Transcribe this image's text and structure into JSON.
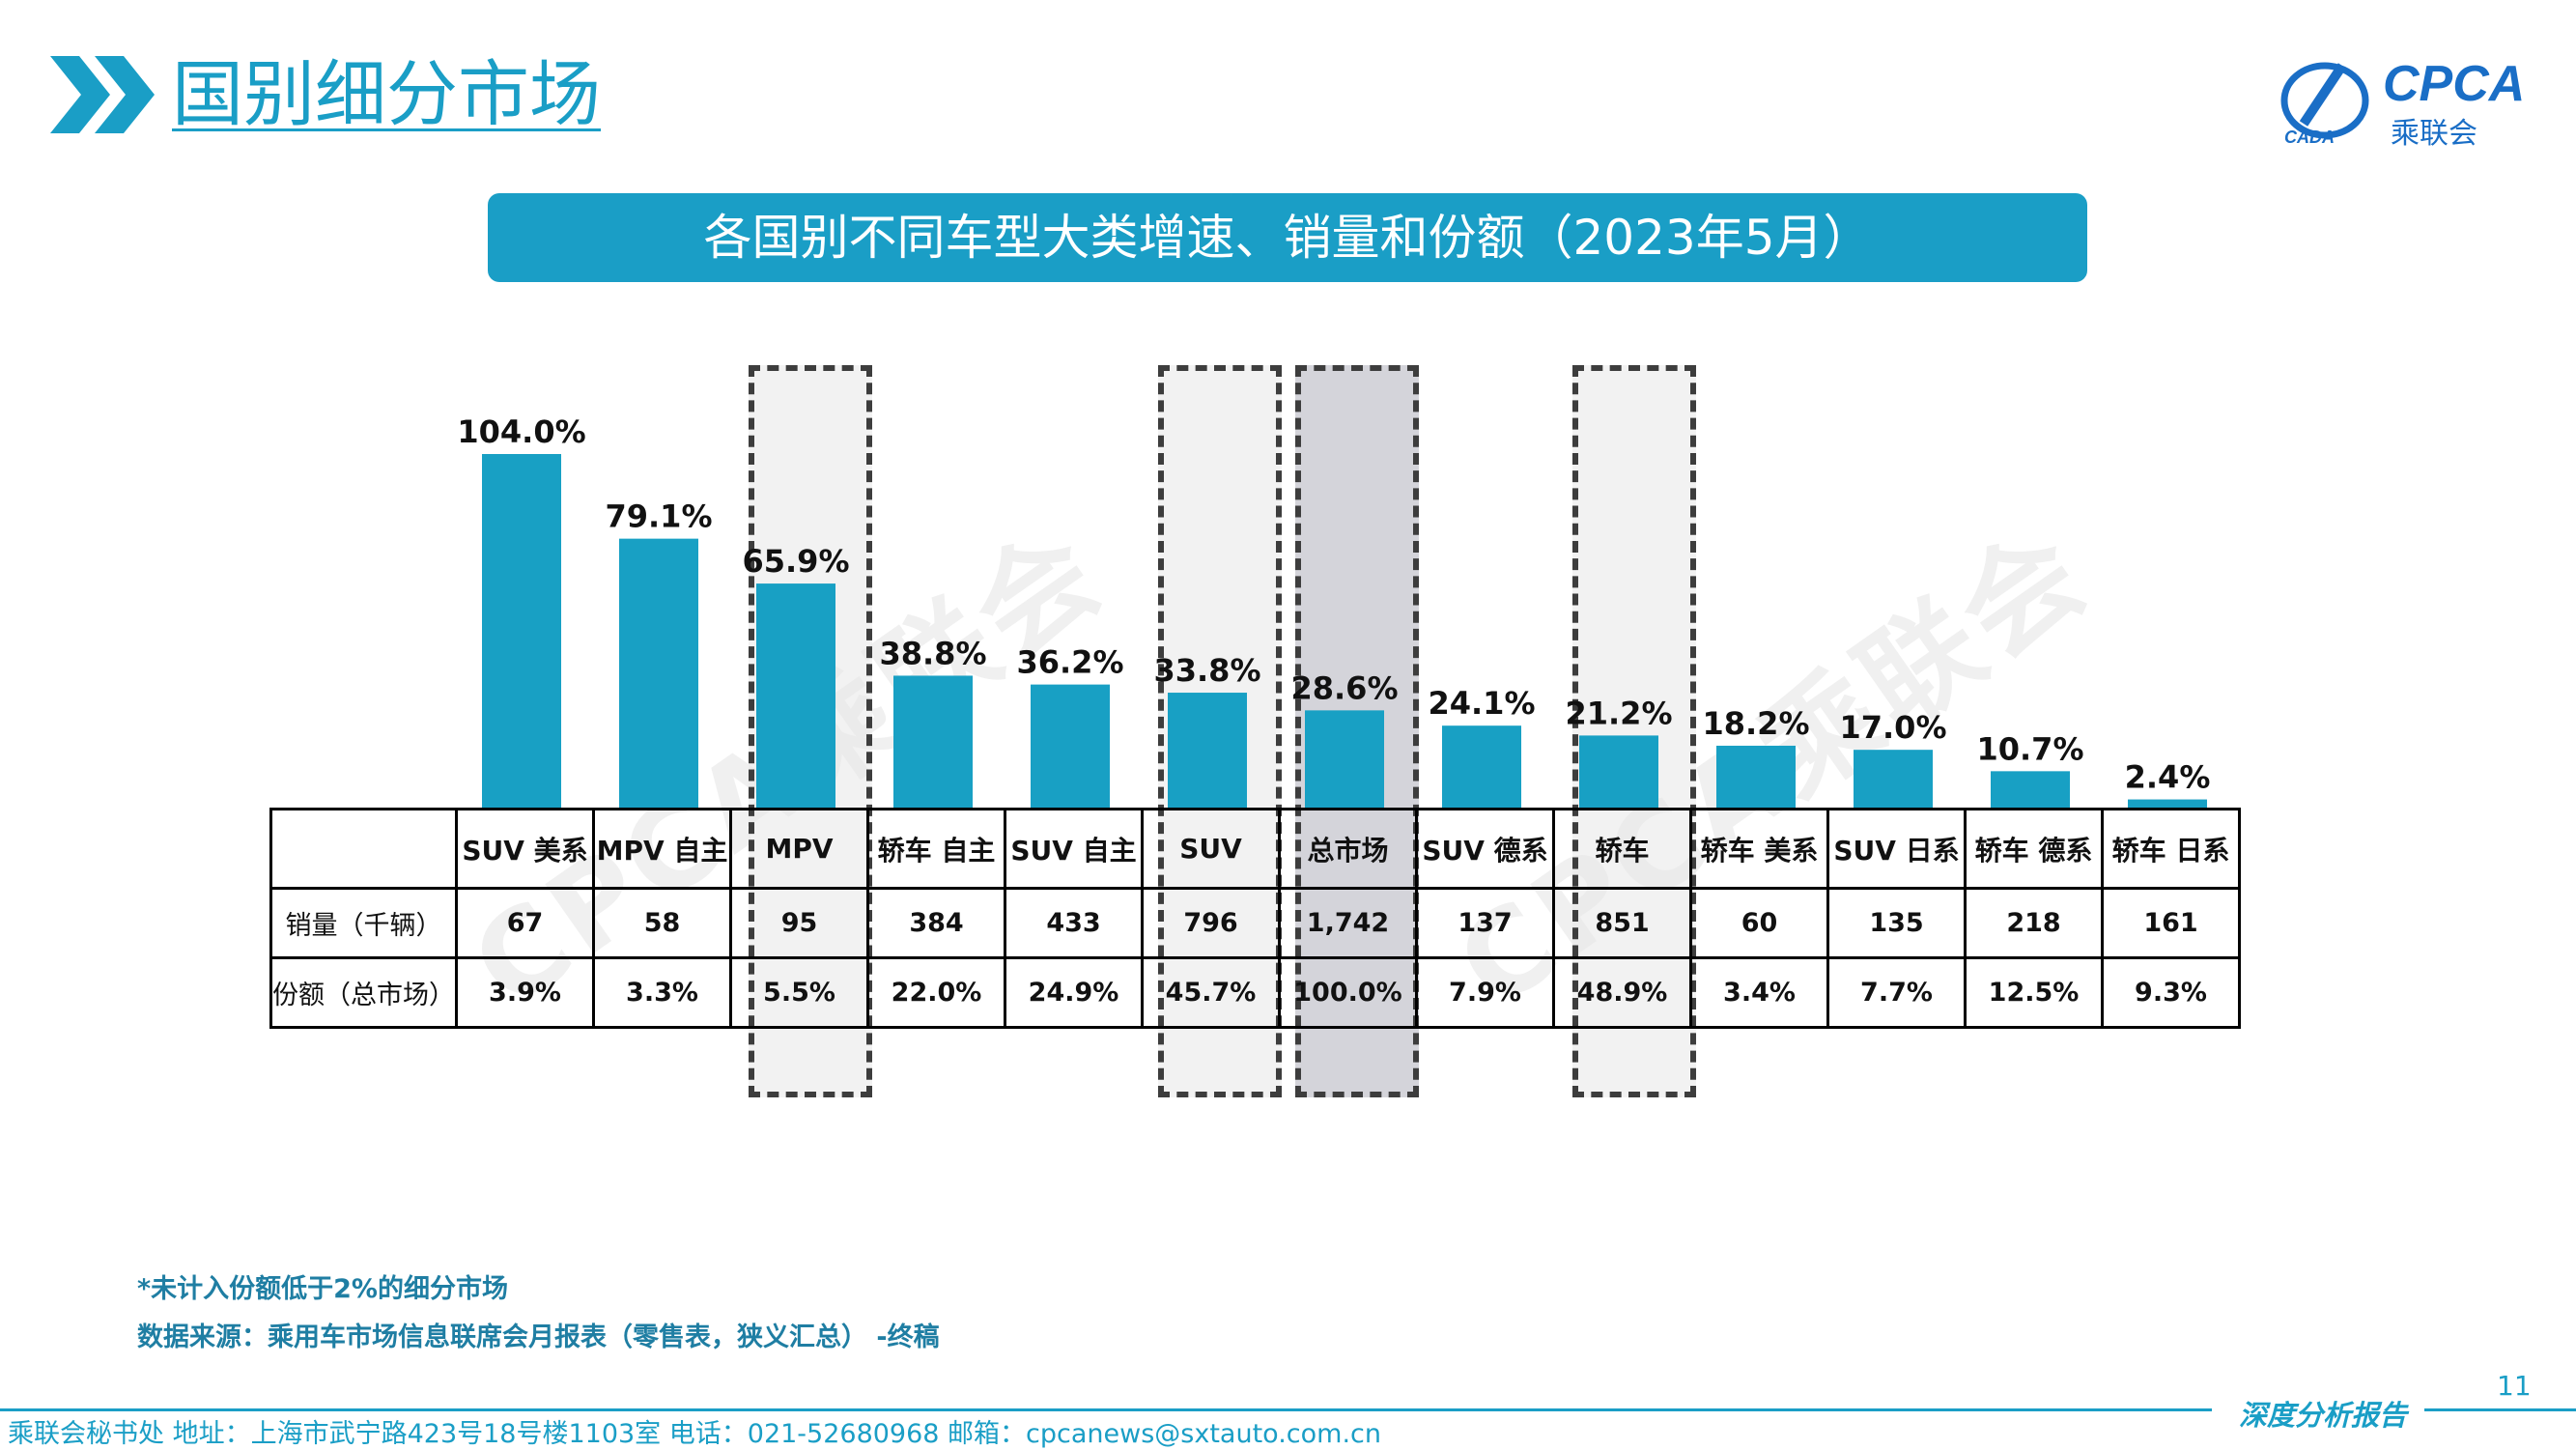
{
  "page": {
    "title": "国别细分市场",
    "banner": "各国别不同车型大类增速、销量和份额（2023年5月）",
    "logo_text": "CPCA",
    "logo_subtext": "乘联会",
    "logo_small": "CADA",
    "watermark": "CPCA乘联会",
    "page_number": "11",
    "footer_left": "乘联会秘书处   地址：上海市武宁路423号18号楼1103室  电话：021-52680968   邮箱：cpcanews@sxtauto.com.cn",
    "footer_right": "深度分析报告",
    "colors": {
      "accent": "#1a9ec6",
      "bar": "#18a0c4"
    }
  },
  "notes": {
    "line1": "*未计入份额低于2%的细分市场",
    "line2": "数据来源：乘用车市场信息联席会月报表（零售表，狭义汇总）  -终稿"
  },
  "table": {
    "row_labels": {
      "sales": "销量（千辆）",
      "share": "份额（总市场）"
    },
    "columns": [
      {
        "name": "SUV 美系",
        "sales": "67",
        "share": "3.9%"
      },
      {
        "name": "MPV 自主",
        "sales": "58",
        "share": "3.3%"
      },
      {
        "name": "MPV",
        "sales": "95",
        "share": "5.5%"
      },
      {
        "name": "轿车 自主",
        "sales": "384",
        "share": "22.0%"
      },
      {
        "name": "SUV 自主",
        "sales": "433",
        "share": "24.9%"
      },
      {
        "name": "SUV",
        "sales": "796",
        "share": "45.7%"
      },
      {
        "name": "总市场",
        "sales": "1,742",
        "share": "100.0%"
      },
      {
        "name": "SUV 德系",
        "sales": "137",
        "share": "7.9%"
      },
      {
        "name": "轿车",
        "sales": "851",
        "share": "48.9%"
      },
      {
        "name": "轿车 美系",
        "sales": "60",
        "share": "3.4%"
      },
      {
        "name": "SUV 日系",
        "sales": "135",
        "share": "7.7%"
      },
      {
        "name": "轿车 德系",
        "sales": "218",
        "share": "12.5%"
      },
      {
        "name": "轿车 日系",
        "sales": "161",
        "share": "9.3%"
      }
    ]
  },
  "chart_data": {
    "type": "bar",
    "categories": [
      "SUV 美系",
      "MPV 自主",
      "MPV",
      "轿车 自主",
      "SUV 自主",
      "SUV",
      "总市场",
      "SUV 德系",
      "轿车",
      "轿车 美系",
      "SUV 日系",
      "轿车 德系",
      "轿车 日系"
    ],
    "values": [
      104.0,
      79.1,
      65.9,
      38.8,
      36.2,
      33.8,
      28.6,
      24.1,
      21.2,
      18.2,
      17.0,
      10.7,
      2.4
    ],
    "data_labels": [
      "104.0%",
      "79.1%",
      "65.9%",
      "38.8%",
      "36.2%",
      "33.8%",
      "28.6%",
      "24.1%",
      "21.2%",
      "18.2%",
      "17.0%",
      "10.7%",
      "2.4%"
    ],
    "highlighted": [
      "MPV",
      "SUV",
      "总市场",
      "轿车"
    ],
    "title": "各国别不同车型大类增速、销量和份额（2023年5月）",
    "ylim": [
      0,
      104.0
    ],
    "grid": false
  }
}
